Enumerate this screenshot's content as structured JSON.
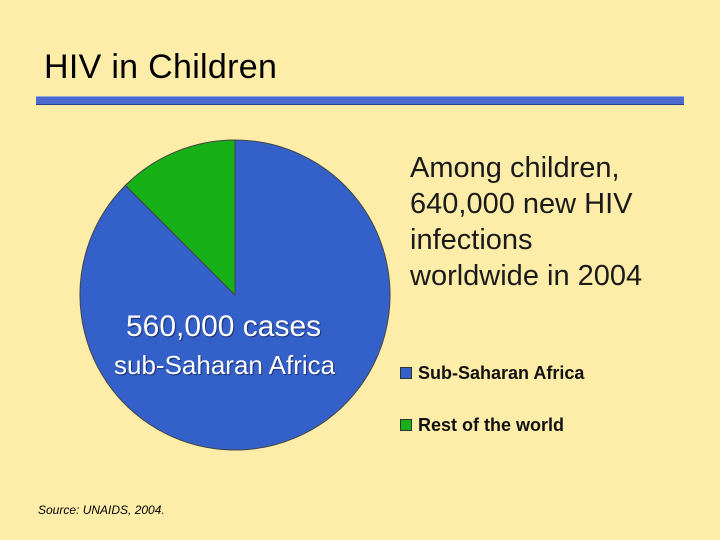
{
  "slide": {
    "title": "HIV in Children",
    "headline_lines": [
      "Among children,",
      "640,000 new HIV",
      "infections",
      "worldwide in 2004"
    ],
    "source": "Source: UNAIDS, 2004."
  },
  "chart_data": {
    "type": "pie",
    "title": "",
    "total": 640000,
    "slices": [
      {
        "name": "Sub-Saharan Africa",
        "value": 560000,
        "color": "#3461C9"
      },
      {
        "name": "Rest of the world",
        "value": 80000,
        "color": "#17B017"
      }
    ],
    "annotation": {
      "value_text": "560,000 cases",
      "label_text": "sub-Saharan Africa"
    },
    "legend": [
      "Sub-Saharan Africa",
      "Rest of the world"
    ]
  }
}
